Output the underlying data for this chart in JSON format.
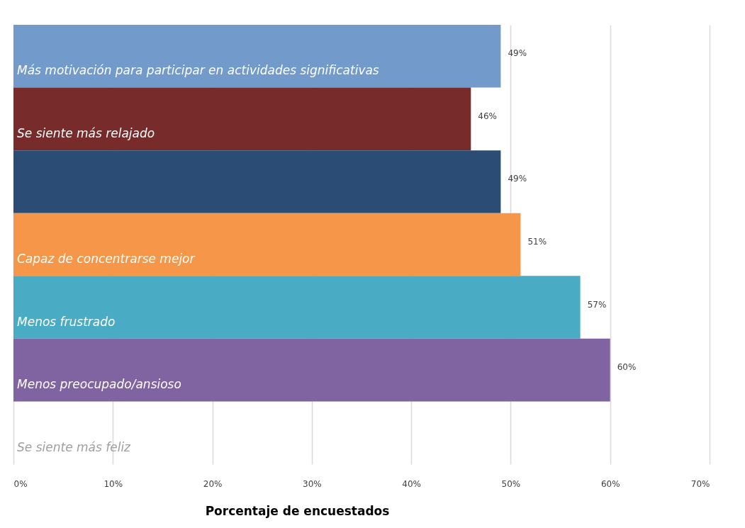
{
  "chart_data": {
    "type": "bar",
    "orientation": "horizontal",
    "xlabel": "Porcentaje de encuestados",
    "categories": [
      "Más motivación para participar en actividades significativas",
      "Se siente más relajado",
      null,
      "Capaz de concentrarse mejor",
      "Menos frustrado",
      "Menos preocupado/ansioso",
      "Se siente más feliz"
    ],
    "values": [
      49,
      46,
      49,
      51,
      57,
      60,
      null
    ],
    "colors": [
      "#729bcc",
      "#772b2b",
      "#2b4c74",
      "#f59648",
      "#4aabc5",
      "#8064a1",
      "#9e9e9e"
    ],
    "value_labels": [
      "49%",
      "46%",
      "49%",
      "51%",
      "57%",
      "60%",
      null
    ],
    "xlim": [
      0,
      70
    ],
    "xticks": [
      {
        "value": 0,
        "label": "0%"
      },
      {
        "value": 10,
        "label": "10%"
      },
      {
        "value": 20,
        "label": "20%"
      },
      {
        "value": 30,
        "label": "30%"
      },
      {
        "value": 40,
        "label": "40%"
      },
      {
        "value": 50,
        "label": "50%"
      },
      {
        "value": 60,
        "label": "60%"
      },
      {
        "value": 70,
        "label": "70%"
      }
    ],
    "grid": "x"
  }
}
